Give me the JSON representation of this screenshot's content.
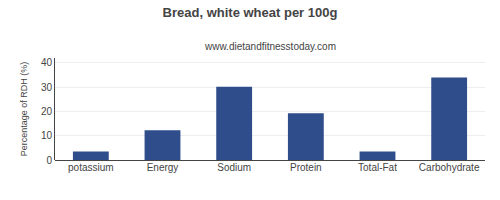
{
  "chart_data": {
    "type": "bar",
    "title": "Bread, white wheat per 100g",
    "subtitle": "www.dietandfitnesstoday.com",
    "categories": [
      "potassium",
      "Energy",
      "Sodium",
      "Protein",
      "Total-Fat",
      "Carbohydrate"
    ],
    "values": [
      3.5,
      12.2,
      30.2,
      19.2,
      3.5,
      34.0
    ],
    "color": "#2e4d8a",
    "ylabel": "Percentage of RDH (%)",
    "ylim": [
      0,
      42
    ],
    "yticks": [
      0,
      10,
      20,
      30,
      40
    ],
    "grid": true
  }
}
